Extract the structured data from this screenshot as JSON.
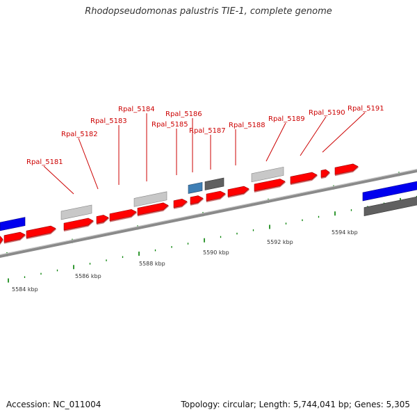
{
  "title": "Rhodopseudomonas palustris TIE-1, complete genome",
  "footer": {
    "accession": "Accession: NC_011004",
    "summary": "Topology: circular; Length: 5,744,041 bp; Genes: 5,305"
  },
  "colors": {
    "cds_forward": "#ff0000",
    "cds_reverse_blue": "#0000ee",
    "pseudogene_light": "#c8c8c8",
    "pseudogene_dark": "#606060",
    "rna_steelblue": "#3f7fb5",
    "backbone": "#8a8a8a",
    "tick": "#007f00",
    "label": "#cc0000"
  },
  "scale_labels": [
    "5584 kbp",
    "5586 kbp",
    "5588 kbp",
    "5590 kbp",
    "5592 kbp",
    "5594 kbp"
  ],
  "gene_labels": [
    "Rpal_5181",
    "Rpal_5182",
    "Rpal_5183",
    "Rpal_5184",
    "Rpal_5185",
    "Rpal_5186",
    "Rpal_5187",
    "Rpal_5188",
    "Rpal_5189",
    "Rpal_5190",
    "Rpal_5191"
  ]
}
